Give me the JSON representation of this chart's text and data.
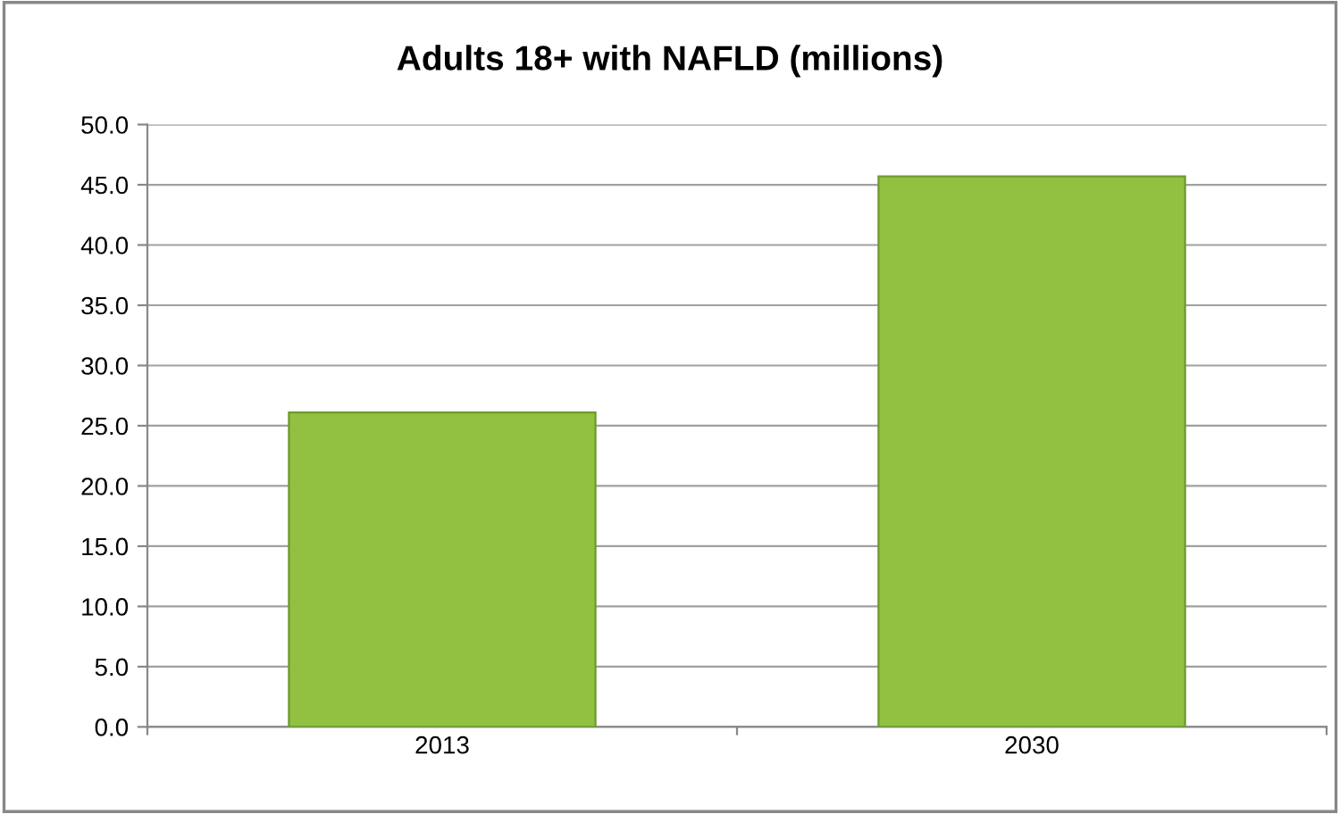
{
  "chart_data": {
    "type": "bar",
    "title": "Adults 18+ with NAFLD (millions)",
    "categories": [
      "2013",
      "2030"
    ],
    "values": [
      26.1,
      45.7
    ],
    "color": "#92c040",
    "ylim": [
      0,
      50
    ],
    "yticks": [
      {
        "value": 0,
        "label": "0.0"
      },
      {
        "value": 5,
        "label": "5.0"
      },
      {
        "value": 10,
        "label": "10.0"
      },
      {
        "value": 15,
        "label": "15.0"
      },
      {
        "value": 20,
        "label": "20.0"
      },
      {
        "value": 25,
        "label": "25.0"
      },
      {
        "value": 30,
        "label": "30.0"
      },
      {
        "value": 35,
        "label": "35.0"
      },
      {
        "value": 40,
        "label": "40.0"
      },
      {
        "value": 45,
        "label": "45.0"
      },
      {
        "value": 50,
        "label": "50.0"
      }
    ],
    "grid": "y",
    "legend": false
  }
}
